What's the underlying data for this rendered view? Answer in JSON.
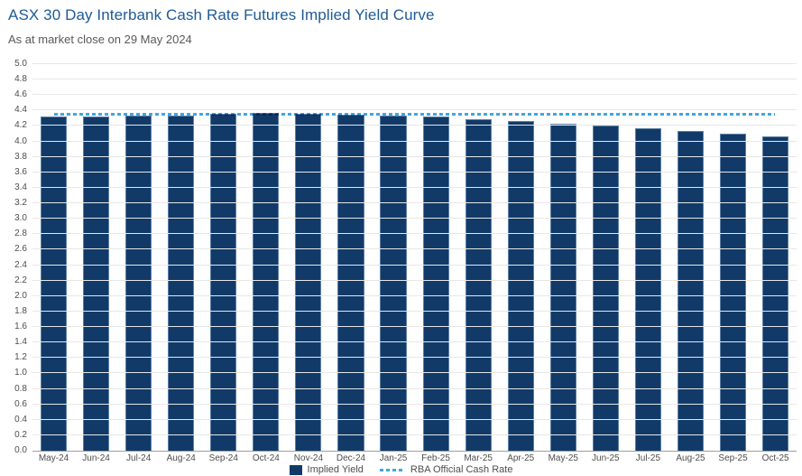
{
  "header": {
    "title": "ASX 30 Day Interbank Cash Rate Futures Implied Yield Curve",
    "subtitle": "As at market close on 29 May 2024"
  },
  "chart_data": {
    "type": "bar",
    "title": "ASX 30 Day Interbank Cash Rate Futures Implied Yield Curve",
    "subtitle": "As at market close on 29 May 2024",
    "categories": [
      "May-24",
      "Jun-24",
      "Jul-24",
      "Aug-24",
      "Sep-24",
      "Oct-24",
      "Nov-24",
      "Dec-24",
      "Jan-25",
      "Feb-25",
      "Mar-25",
      "Apr-25",
      "May-25",
      "Jun-25",
      "Jul-25",
      "Aug-25",
      "Sep-25",
      "Oct-25"
    ],
    "series": [
      {
        "name": "Implied Yield",
        "type": "bar",
        "values": [
          4.32,
          4.32,
          4.33,
          4.34,
          4.36,
          4.37,
          4.36,
          4.35,
          4.34,
          4.32,
          4.29,
          4.26,
          4.23,
          4.2,
          4.17,
          4.13,
          4.1,
          4.06
        ]
      },
      {
        "name": "RBA Official Cash Rate",
        "type": "line",
        "style": "dashed",
        "values": [
          4.35,
          4.35,
          4.35,
          4.35,
          4.35,
          4.35,
          4.35,
          4.35,
          4.35,
          4.35,
          4.35,
          4.35,
          4.35,
          4.35,
          4.35,
          4.35,
          4.35,
          4.35
        ]
      }
    ],
    "xlabel": "",
    "ylabel": "",
    "ylim": [
      0.0,
      5.0
    ],
    "ytick_step": 0.2,
    "grid": true,
    "legend_position": "bottom"
  },
  "colors": {
    "title": "#1E5A96",
    "subtitle": "#595959",
    "bar": "#113A68",
    "bar_border": "#5C7FA6",
    "cash_rate_line": "#3FA7E0",
    "gridline": "#E7E7E7",
    "axis_line": "#9E9E9E",
    "tick_label": "#4D4D4D",
    "legend_label": "#4D4D4D"
  }
}
